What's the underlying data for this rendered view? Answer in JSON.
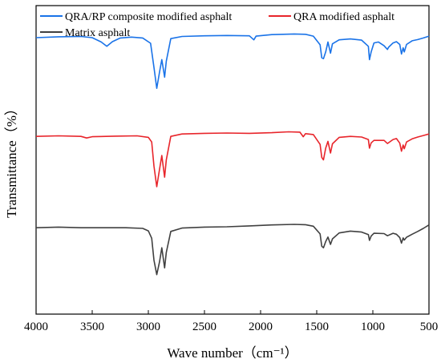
{
  "chart_data": {
    "type": "line",
    "xlabel": "Wave number（cm⁻¹）",
    "ylabel": "Transmittance（%）",
    "xlim": [
      4000,
      500
    ],
    "x_reversed": true,
    "xticks": [
      4000,
      3500,
      3000,
      2500,
      2000,
      1500,
      1000,
      500
    ],
    "ylim": [
      0,
      100
    ],
    "ytick_labels": false,
    "grid": false,
    "legend_placement": "top",
    "series": [
      {
        "name": "QRA/RP composite modified asphalt",
        "color": "#1a73e8",
        "points": [
          [
            4000,
            89.6
          ],
          [
            3800,
            89.9
          ],
          [
            3600,
            90.0
          ],
          [
            3500,
            89.6
          ],
          [
            3420,
            88.2
          ],
          [
            3370,
            86.8
          ],
          [
            3320,
            88.3
          ],
          [
            3250,
            89.5
          ],
          [
            3150,
            89.8
          ],
          [
            3050,
            89.5
          ],
          [
            2980,
            87.8
          ],
          [
            2950,
            80.0
          ],
          [
            2925,
            73.2
          ],
          [
            2900,
            78.5
          ],
          [
            2880,
            82.5
          ],
          [
            2855,
            76.8
          ],
          [
            2840,
            82.0
          ],
          [
            2800,
            89.3
          ],
          [
            2700,
            90.0
          ],
          [
            2500,
            90.2
          ],
          [
            2300,
            90.3
          ],
          [
            2100,
            90.2
          ],
          [
            2060,
            88.9
          ],
          [
            2040,
            90.1
          ],
          [
            1900,
            90.6
          ],
          [
            1700,
            90.8
          ],
          [
            1600,
            90.7
          ],
          [
            1530,
            90.1
          ],
          [
            1470,
            87.3
          ],
          [
            1455,
            83.1
          ],
          [
            1440,
            82.8
          ],
          [
            1420,
            85.0
          ],
          [
            1400,
            88.2
          ],
          [
            1377,
            84.6
          ],
          [
            1360,
            87.6
          ],
          [
            1300,
            88.9
          ],
          [
            1200,
            89.2
          ],
          [
            1100,
            88.8
          ],
          [
            1040,
            86.8
          ],
          [
            1030,
            82.5
          ],
          [
            1015,
            85.0
          ],
          [
            990,
            87.9
          ],
          [
            950,
            88.2
          ],
          [
            900,
            87.0
          ],
          [
            870,
            85.8
          ],
          [
            860,
            86.5
          ],
          [
            820,
            87.9
          ],
          [
            790,
            88.3
          ],
          [
            760,
            87.4
          ],
          [
            745,
            84.3
          ],
          [
            730,
            86.3
          ],
          [
            720,
            85.0
          ],
          [
            700,
            87.4
          ],
          [
            650,
            88.6
          ],
          [
            600,
            89.0
          ],
          [
            550,
            89.5
          ],
          [
            500,
            90.1
          ]
        ]
      },
      {
        "name": "QRA modified asphalt",
        "color": "#e8252b",
        "points": [
          [
            4000,
            57.6
          ],
          [
            3800,
            57.8
          ],
          [
            3600,
            57.6
          ],
          [
            3550,
            57.1
          ],
          [
            3500,
            57.5
          ],
          [
            3300,
            57.7
          ],
          [
            3100,
            57.8
          ],
          [
            3000,
            57.3
          ],
          [
            2970,
            55.8
          ],
          [
            2950,
            48.0
          ],
          [
            2925,
            41.3
          ],
          [
            2900,
            47.0
          ],
          [
            2880,
            51.4
          ],
          [
            2855,
            44.4
          ],
          [
            2840,
            50.0
          ],
          [
            2800,
            57.6
          ],
          [
            2700,
            58.4
          ],
          [
            2500,
            58.6
          ],
          [
            2300,
            58.7
          ],
          [
            2100,
            58.6
          ],
          [
            1900,
            58.8
          ],
          [
            1750,
            59.1
          ],
          [
            1650,
            59.0
          ],
          [
            1620,
            57.5
          ],
          [
            1600,
            58.5
          ],
          [
            1530,
            58.2
          ],
          [
            1470,
            55.0
          ],
          [
            1455,
            50.8
          ],
          [
            1440,
            50.0
          ],
          [
            1420,
            53.8
          ],
          [
            1400,
            56.0
          ],
          [
            1377,
            52.2
          ],
          [
            1360,
            55.2
          ],
          [
            1300,
            57.3
          ],
          [
            1200,
            57.6
          ],
          [
            1100,
            57.4
          ],
          [
            1040,
            56.6
          ],
          [
            1030,
            53.8
          ],
          [
            1015,
            55.5
          ],
          [
            990,
            56.3
          ],
          [
            900,
            56.3
          ],
          [
            870,
            55.3
          ],
          [
            820,
            56.6
          ],
          [
            790,
            56.9
          ],
          [
            760,
            55.4
          ],
          [
            745,
            52.8
          ],
          [
            730,
            54.8
          ],
          [
            720,
            53.6
          ],
          [
            700,
            55.8
          ],
          [
            650,
            56.8
          ],
          [
            600,
            57.4
          ],
          [
            550,
            57.9
          ],
          [
            500,
            58.4
          ]
        ]
      },
      {
        "name": "Matrix asphalt",
        "color": "#404040",
        "points": [
          [
            4000,
            28.0
          ],
          [
            3800,
            28.2
          ],
          [
            3600,
            28.0
          ],
          [
            3400,
            28.0
          ],
          [
            3200,
            28.0
          ],
          [
            3050,
            27.8
          ],
          [
            3000,
            27.0
          ],
          [
            2970,
            24.6
          ],
          [
            2950,
            17.5
          ],
          [
            2925,
            12.8
          ],
          [
            2900,
            17.0
          ],
          [
            2880,
            21.5
          ],
          [
            2855,
            15.0
          ],
          [
            2840,
            20.0
          ],
          [
            2800,
            26.8
          ],
          [
            2700,
            27.9
          ],
          [
            2500,
            28.2
          ],
          [
            2300,
            28.3
          ],
          [
            2100,
            28.6
          ],
          [
            1900,
            28.9
          ],
          [
            1700,
            29.1
          ],
          [
            1600,
            29.0
          ],
          [
            1530,
            28.5
          ],
          [
            1470,
            26.0
          ],
          [
            1455,
            22.0
          ],
          [
            1440,
            21.5
          ],
          [
            1420,
            23.5
          ],
          [
            1400,
            25.0
          ],
          [
            1377,
            22.6
          ],
          [
            1360,
            24.4
          ],
          [
            1300,
            26.3
          ],
          [
            1200,
            26.9
          ],
          [
            1100,
            26.6
          ],
          [
            1040,
            25.8
          ],
          [
            1030,
            23.9
          ],
          [
            1015,
            25.3
          ],
          [
            990,
            26.2
          ],
          [
            900,
            26.1
          ],
          [
            870,
            25.4
          ],
          [
            820,
            26.2
          ],
          [
            790,
            25.9
          ],
          [
            760,
            24.8
          ],
          [
            745,
            23.0
          ],
          [
            730,
            24.7
          ],
          [
            720,
            24.0
          ],
          [
            700,
            24.9
          ],
          [
            650,
            25.9
          ],
          [
            600,
            26.8
          ],
          [
            550,
            27.8
          ],
          [
            500,
            28.9
          ]
        ]
      }
    ]
  }
}
